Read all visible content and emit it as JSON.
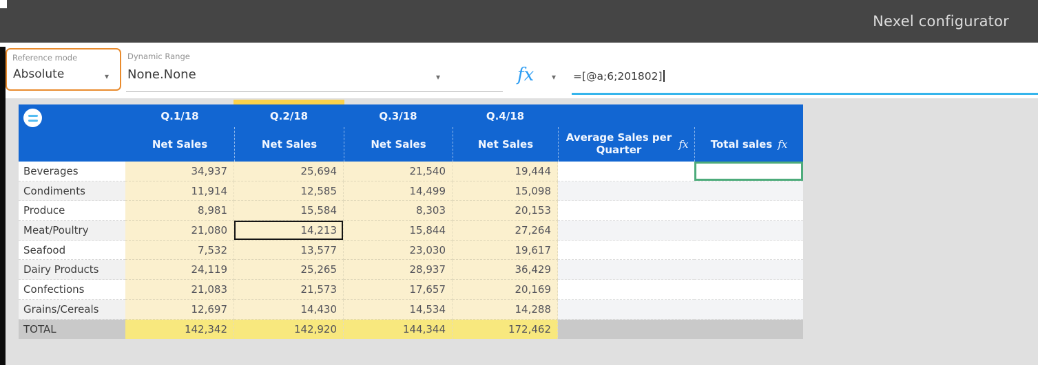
{
  "app": {
    "title": "Nexel configurator"
  },
  "toolbar": {
    "reference_mode": {
      "label": "Reference mode",
      "value": "Absolute"
    },
    "dynamic_range": {
      "label": "Dynamic Range",
      "value": "None.None"
    },
    "fx_symbol": "fx",
    "formula": {
      "value": "=[@a;6;201802]"
    }
  },
  "table": {
    "quarters": [
      {
        "label": "Q.1/18",
        "measure": "Net Sales"
      },
      {
        "label": "Q.2/18",
        "measure": "Net Sales",
        "highlighted": true
      },
      {
        "label": "Q.3/18",
        "measure": "Net Sales"
      },
      {
        "label": "Q.4/18",
        "measure": "Net Sales"
      }
    ],
    "computed_columns": [
      {
        "label": "Average Sales per Quarter",
        "fx": "fx"
      },
      {
        "label": "Total sales",
        "fx": "fx"
      }
    ],
    "rows": [
      {
        "label": "Beverages",
        "net_sales": [
          "34,937",
          "25,694",
          "21,540",
          "19,444"
        ],
        "average": "",
        "total": ""
      },
      {
        "label": "Condiments",
        "net_sales": [
          "11,914",
          "12,585",
          "14,499",
          "15,098"
        ],
        "average": "",
        "total": ""
      },
      {
        "label": "Produce",
        "net_sales": [
          "8,981",
          "15,584",
          "8,303",
          "20,153"
        ],
        "average": "",
        "total": ""
      },
      {
        "label": "Meat/Poultry",
        "net_sales": [
          "21,080",
          "14,213",
          "15,844",
          "27,264"
        ],
        "average": "",
        "total": ""
      },
      {
        "label": "Seafood",
        "net_sales": [
          "7,532",
          "13,577",
          "23,030",
          "19,617"
        ],
        "average": "",
        "total": ""
      },
      {
        "label": "Dairy Products",
        "net_sales": [
          "24,119",
          "25,265",
          "28,937",
          "36,429"
        ],
        "average": "",
        "total": ""
      },
      {
        "label": "Confections",
        "net_sales": [
          "21,083",
          "21,573",
          "17,657",
          "20,169"
        ],
        "average": "",
        "total": ""
      },
      {
        "label": "Grains/Cereals",
        "net_sales": [
          "12,697",
          "14,430",
          "14,534",
          "14,288"
        ],
        "average": "",
        "total": ""
      }
    ],
    "total_row": {
      "label": "TOTAL",
      "net_sales": [
        "142,342",
        "142,920",
        "144,344",
        "172,462"
      ],
      "average": "",
      "total": ""
    },
    "selected_cell": {
      "row": "Meat/Poultry",
      "quarter": "Q.2/18",
      "row_index": 3,
      "quarter_index": 1
    },
    "active_fx_cell": {
      "row": "Beverages",
      "column": "Total sales",
      "row_index": 0
    }
  },
  "colors": {
    "header_blue": "#1266d2",
    "data_fill": "#fbf0ce",
    "total_fill": "#f8e87e",
    "column_highlight": "#fcd24b",
    "reference_box_accent": "#e98b2d",
    "formula_underline": "#35b5ec",
    "selection_border": "#141414",
    "active_fx_border": "#4dab7b"
  }
}
